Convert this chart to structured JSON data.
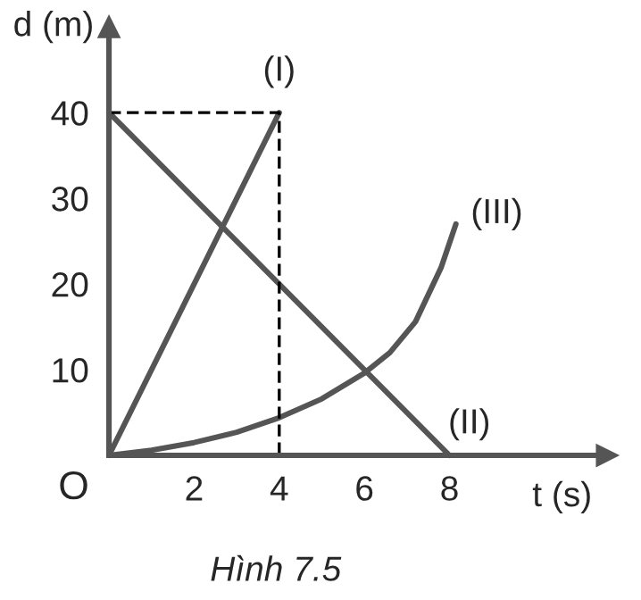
{
  "chart_data": {
    "type": "line",
    "xlabel": "t (s)",
    "ylabel": "d (m)",
    "xlim": [
      0,
      11.7
    ],
    "ylim": [
      0,
      50
    ],
    "xticks": [
      2,
      4,
      6,
      8
    ],
    "yticks": [
      10,
      20,
      30,
      40
    ],
    "grid": false,
    "legend": false,
    "marker": "none",
    "series": [
      {
        "name": "(I)",
        "color": "#555555",
        "x": [
          0,
          4
        ],
        "values": [
          0,
          40
        ]
      },
      {
        "name": "(II)",
        "color": "#555555",
        "x": [
          0,
          8
        ],
        "values": [
          40,
          0
        ]
      },
      {
        "name": "(III)",
        "color": "#555555",
        "x": [
          0,
          1,
          2,
          3,
          4,
          5,
          6,
          6.6,
          7.2,
          7.8,
          8.15
        ],
        "values": [
          0,
          0.6,
          1.5,
          2.7,
          4.4,
          6.6,
          9.6,
          12,
          15.6,
          21.9,
          27
        ]
      },
      {
        "color": "#000000",
        "line_style": "dashed",
        "x": [
          0,
          4,
          4
        ],
        "values": [
          40,
          40,
          0
        ]
      }
    ],
    "annotations": [
      {
        "text": "O",
        "x": 0,
        "y": 0
      },
      "Hình 7.5"
    ]
  }
}
